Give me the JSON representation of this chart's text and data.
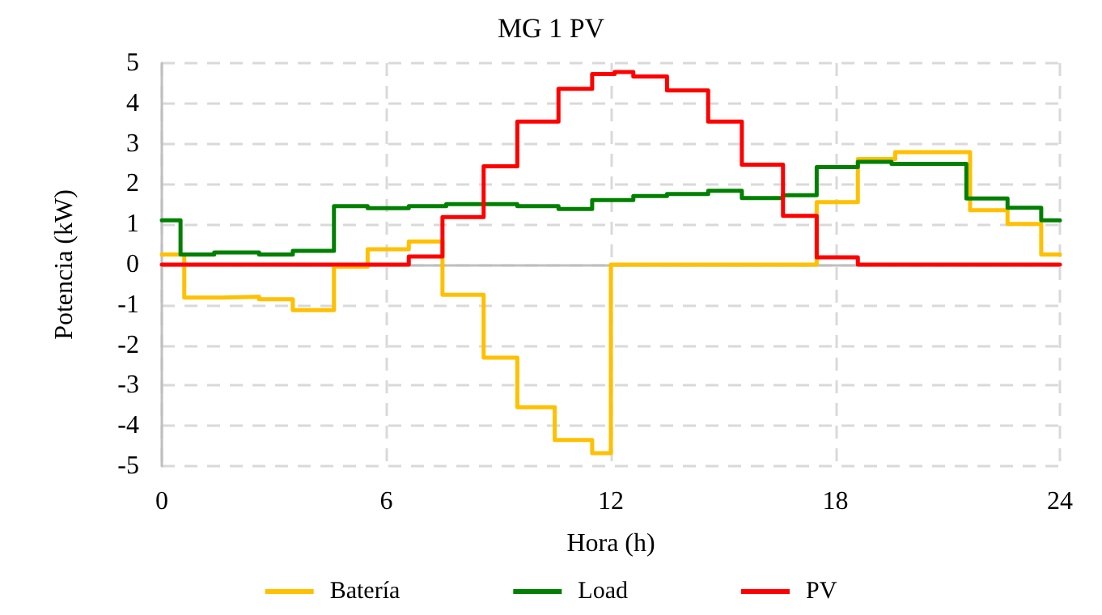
{
  "chart_data": {
    "type": "step",
    "title": "MG 1 PV",
    "xlabel": "Hora (h)",
    "ylabel": "Potencia (kW)",
    "xlim": [
      0,
      24
    ],
    "xticks": [
      0,
      6,
      12,
      18,
      24
    ],
    "ylim": [
      -5,
      5
    ],
    "yticks": [
      -5,
      -4,
      -3,
      -2,
      -1,
      0,
      1,
      2,
      3,
      4,
      5
    ],
    "grid": true,
    "legend": "bottom",
    "line_style": "solid",
    "marker": "none",
    "series": [
      {
        "name": "Batería",
        "color": "#ffc000",
        "x": [
          0,
          0.6,
          1.6,
          2.6,
          3.5,
          4.6,
          5.5,
          6.6,
          7.5,
          8.6,
          9.5,
          10.5,
          11.5,
          12.0,
          17.5,
          18.6,
          19.6,
          21.6,
          22.6,
          23.5,
          24
        ],
        "values": [
          0.25,
          -0.82,
          -0.8,
          -0.86,
          -1.13,
          -0.05,
          0.38,
          0.57,
          -0.75,
          -2.31,
          -3.54,
          -4.35,
          -4.68,
          0,
          1.55,
          2.62,
          2.79,
          1.35,
          1.01,
          0.25,
          0.25
        ]
      },
      {
        "name": "Load",
        "color": "#008000",
        "x": [
          0,
          0.5,
          1.4,
          2.6,
          3.5,
          4.6,
          5.5,
          6.6,
          7.6,
          9.5,
          10.6,
          11.5,
          12.6,
          13.5,
          14.6,
          15.5,
          16.6,
          17.5,
          18.6,
          19.5,
          21.5,
          22.6,
          23.5,
          24
        ],
        "values": [
          1.1,
          0.25,
          0.3,
          0.25,
          0.34,
          1.45,
          1.4,
          1.45,
          1.5,
          1.45,
          1.38,
          1.6,
          1.7,
          1.75,
          1.83,
          1.65,
          1.72,
          2.42,
          2.55,
          2.5,
          1.64,
          1.41,
          1.1,
          1.1
        ]
      },
      {
        "name": "PV",
        "color": "#ff0000",
        "x": [
          0,
          6.6,
          7.5,
          8.6,
          9.5,
          10.6,
          11.5,
          12.1,
          12.6,
          13.5,
          14.6,
          15.5,
          16.6,
          17.5,
          18.6,
          24
        ],
        "values": [
          0,
          0.2,
          1.18,
          2.44,
          3.55,
          4.36,
          4.73,
          4.78,
          4.67,
          4.32,
          3.55,
          2.48,
          1.21,
          0.18,
          0,
          0
        ]
      }
    ]
  }
}
